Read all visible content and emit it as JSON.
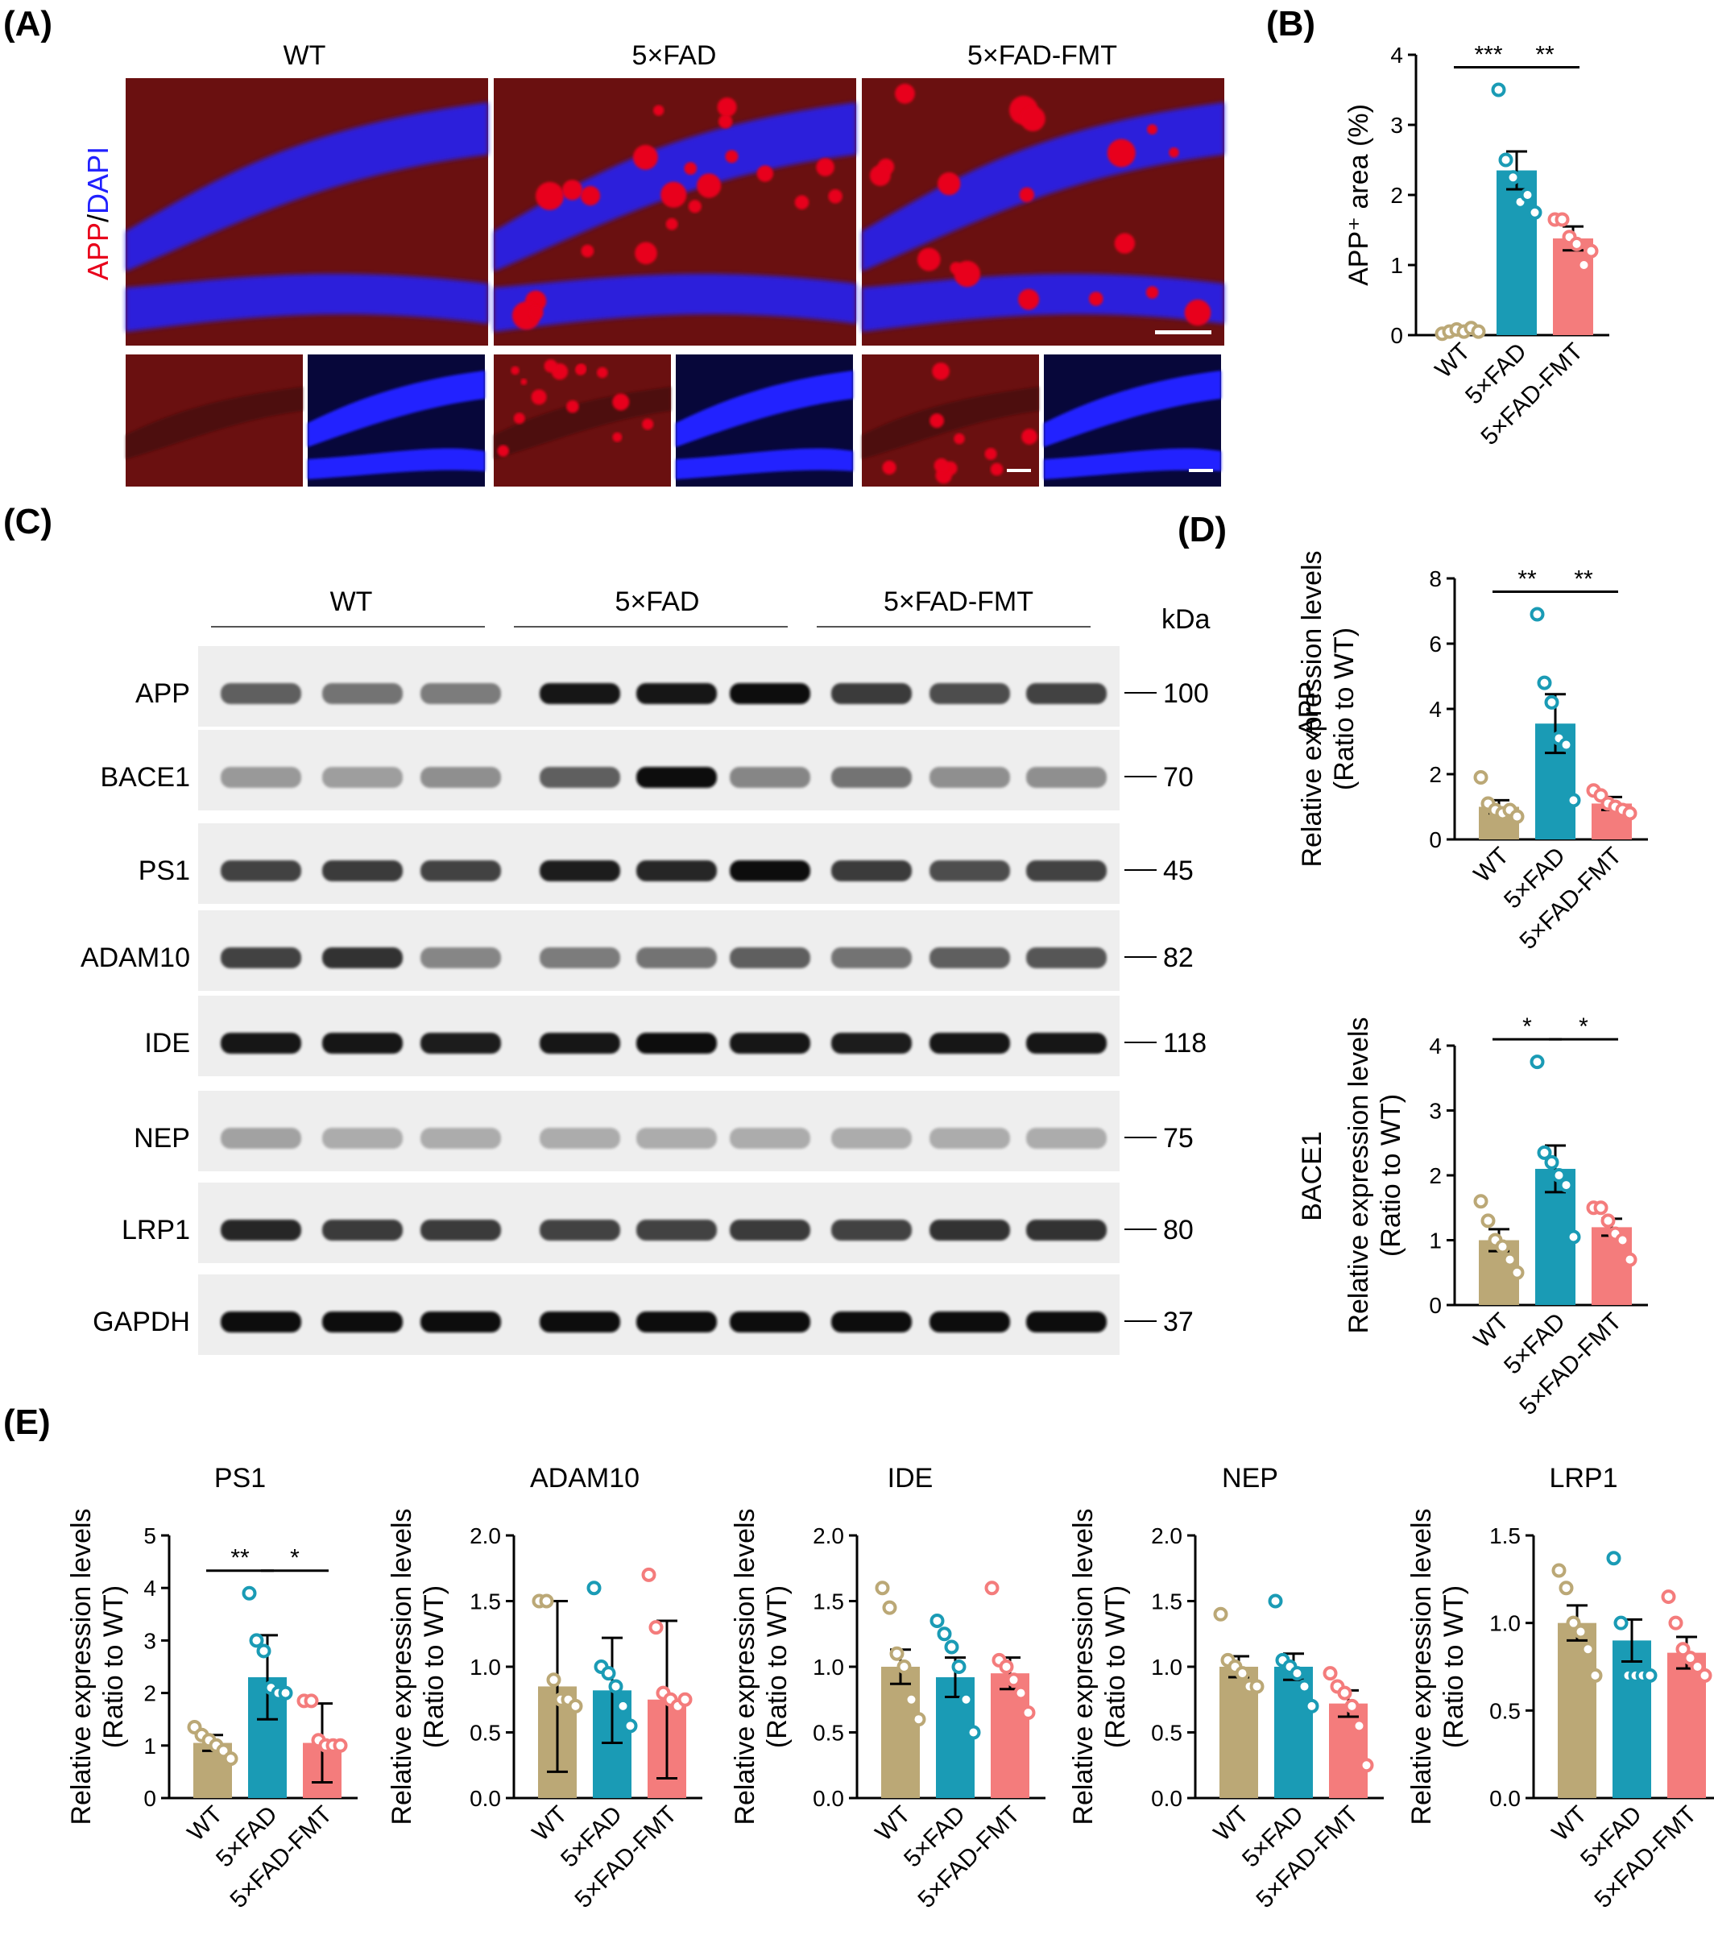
{
  "panels": {
    "A": {
      "label": "(A)",
      "groups": [
        "WT",
        "5×FAD",
        "5×FAD-FMT"
      ],
      "stain_label_1": "APP",
      "stain_label_sep": "/",
      "stain_label_2": "DAPI",
      "colors": {
        "app": "#e8001a",
        "dapi": "#2020ff",
        "bg_red": "#6a1010",
        "bg_blue": "#101070"
      }
    },
    "B": {
      "label": "(B)"
    },
    "C": {
      "label": "(C)",
      "groups": [
        "WT",
        "5×FAD",
        "5×FAD-FMT"
      ],
      "kda_label": "kDa",
      "blots": [
        {
          "name": "APP",
          "kda": "100",
          "intensity": [
            0.55,
            0.45,
            0.4,
            0.95,
            0.95,
            1.0,
            0.75,
            0.65,
            0.7
          ]
        },
        {
          "name": "BACE1",
          "kda": "70",
          "intensity": [
            0.25,
            0.22,
            0.3,
            0.55,
            1.0,
            0.35,
            0.45,
            0.3,
            0.3
          ]
        },
        {
          "name": "PS1",
          "kda": "45",
          "intensity": [
            0.7,
            0.75,
            0.7,
            0.9,
            0.85,
            1.0,
            0.75,
            0.65,
            0.7
          ]
        },
        {
          "name": "ADAM10",
          "kda": "82",
          "intensity": [
            0.7,
            0.8,
            0.35,
            0.4,
            0.45,
            0.55,
            0.45,
            0.55,
            0.6
          ]
        },
        {
          "name": "IDE",
          "kda": "118",
          "intensity": [
            0.95,
            0.95,
            0.9,
            0.95,
            1.0,
            0.95,
            0.9,
            0.95,
            0.95
          ]
        },
        {
          "name": "NEP",
          "kda": "75",
          "intensity": [
            0.2,
            0.15,
            0.15,
            0.15,
            0.15,
            0.15,
            0.15,
            0.15,
            0.15
          ]
        },
        {
          "name": "LRP1",
          "kda": "80",
          "intensity": [
            0.85,
            0.75,
            0.75,
            0.7,
            0.7,
            0.75,
            0.7,
            0.8,
            0.8
          ]
        },
        {
          "name": "GAPDH",
          "kda": "37",
          "intensity": [
            1.0,
            1.0,
            1.0,
            1.0,
            1.0,
            1.0,
            1.0,
            1.0,
            1.0
          ]
        }
      ]
    },
    "D": {
      "label": "(D)"
    },
    "E": {
      "label": "(E)"
    }
  },
  "colors": {
    "WT": "#bba876",
    "5×FAD": "#1a9bb5",
    "5×FAD-FMT": "#f47c7c"
  },
  "chart_data": [
    {
      "id": "B",
      "type": "bar",
      "categories": [
        "WT",
        "5×FAD",
        "5×FAD-FMT"
      ],
      "values": [
        0.05,
        2.35,
        1.38
      ],
      "errors": [
        0.03,
        0.27,
        0.17
      ],
      "points": [
        [
          0.02,
          0.05,
          0.08,
          0.05,
          0.1,
          0.05
        ],
        [
          3.5,
          2.5,
          2.25,
          1.9,
          2.0,
          1.75
        ],
        [
          1.65,
          1.65,
          1.4,
          1.3,
          1.0,
          1.2
        ]
      ],
      "ylabel": "APP⁺ area (%)",
      "ylim": [
        0,
        4
      ],
      "yticks": [
        "0",
        "1",
        "2",
        "3",
        "4"
      ],
      "sig": [
        {
          "from": 0,
          "to": 1,
          "text": "***"
        },
        {
          "from": 1,
          "to": 2,
          "text": "**"
        }
      ]
    },
    {
      "id": "D-APP",
      "type": "bar",
      "categories": [
        "WT",
        "5×FAD",
        "5×FAD-FMT"
      ],
      "values": [
        1.0,
        3.55,
        1.1
      ],
      "errors": [
        0.2,
        0.9,
        0.2
      ],
      "points": [
        [
          1.9,
          1.1,
          0.9,
          0.8,
          0.9,
          0.7
        ],
        [
          6.9,
          4.8,
          4.2,
          3.1,
          2.9,
          1.2
        ],
        [
          1.5,
          1.35,
          1.1,
          1.0,
          0.9,
          0.8
        ]
      ],
      "title": "APP",
      "ylabel": "Relative expression levels",
      "ylabel2": "(Ratio to WT)",
      "ylim": [
        0,
        8
      ],
      "yticks": [
        "0",
        "2",
        "4",
        "6",
        "8"
      ],
      "sig": [
        {
          "from": 0,
          "to": 1,
          "text": "**"
        },
        {
          "from": 1,
          "to": 2,
          "text": "**"
        }
      ]
    },
    {
      "id": "D-BACE1",
      "type": "bar",
      "categories": [
        "WT",
        "5×FAD",
        "5×FAD-FMT"
      ],
      "values": [
        1.0,
        2.1,
        1.2
      ],
      "errors": [
        0.17,
        0.36,
        0.13
      ],
      "points": [
        [
          1.6,
          1.3,
          1.0,
          0.9,
          0.7,
          0.5
        ],
        [
          3.75,
          2.35,
          2.2,
          2.0,
          1.85,
          1.05
        ],
        [
          1.5,
          1.5,
          1.3,
          1.1,
          1.0,
          0.7
        ]
      ],
      "title": "BACE1",
      "ylabel": "Relative expression levels",
      "ylabel2": "(Ratio to WT)",
      "ylim": [
        0,
        4
      ],
      "yticks": [
        "0",
        "1",
        "2",
        "3",
        "4"
      ],
      "sig": [
        {
          "from": 0,
          "to": 1,
          "text": "*"
        },
        {
          "from": 1,
          "to": 2,
          "text": "*"
        }
      ]
    },
    {
      "id": "E-PS1",
      "type": "bar",
      "title": "PS1",
      "categories": [
        "WT",
        "5×FAD",
        "5×FAD-FMT"
      ],
      "values": [
        1.05,
        2.3,
        1.05
      ],
      "errors": [
        0.15,
        0.8,
        0.75
      ],
      "points": [
        [
          1.35,
          1.2,
          1.1,
          1.0,
          0.9,
          0.75
        ],
        [
          3.9,
          3.0,
          2.8,
          2.1,
          2.0,
          2.0
        ],
        [
          1.85,
          1.85,
          1.1,
          1.0,
          1.0,
          1.0
        ]
      ],
      "ylabel": "Relative expression levels",
      "ylabel2": "(Ratio to WT)",
      "ylim": [
        0,
        5
      ],
      "yticks": [
        "0",
        "1",
        "2",
        "3",
        "4",
        "5"
      ],
      "sig": [
        {
          "from": 0,
          "to": 1,
          "text": "**"
        },
        {
          "from": 1,
          "to": 2,
          "text": "*"
        }
      ]
    },
    {
      "id": "E-ADAM10",
      "type": "bar",
      "title": "ADAM10",
      "categories": [
        "WT",
        "5×FAD",
        "5×FAD-FMT"
      ],
      "values": [
        0.85,
        0.82,
        0.75
      ],
      "errors": [
        0.65,
        0.4,
        0.6
      ],
      "points": [
        [
          1.5,
          1.5,
          0.9,
          0.75,
          0.75,
          0.7
        ],
        [
          1.6,
          1.0,
          0.95,
          0.85,
          0.7,
          0.55
        ],
        [
          1.7,
          1.3,
          0.8,
          0.75,
          0.7,
          0.75
        ]
      ],
      "ylabel": "Relative expression levels",
      "ylabel2": "(Ratio to WT)",
      "ylim": [
        0,
        2
      ],
      "yticks": [
        "0.0",
        "0.5",
        "1.0",
        "1.5",
        "2.0"
      ],
      "sig": []
    },
    {
      "id": "E-IDE",
      "type": "bar",
      "title": "IDE",
      "categories": [
        "WT",
        "5×FAD",
        "5×FAD-FMT"
      ],
      "values": [
        1.0,
        0.92,
        0.95
      ],
      "errors": [
        0.13,
        0.15,
        0.12
      ],
      "points": [
        [
          1.6,
          1.45,
          1.1,
          1.0,
          0.75,
          0.6
        ],
        [
          1.35,
          1.25,
          1.15,
          1.0,
          0.75,
          0.5
        ],
        [
          1.6,
          1.05,
          1.0,
          0.9,
          0.8,
          0.65
        ]
      ],
      "ylabel": "Relative expression levels",
      "ylabel2": "(Ratio to WT)",
      "ylim": [
        0,
        2
      ],
      "yticks": [
        "0.0",
        "0.5",
        "1.0",
        "1.5",
        "2.0"
      ],
      "sig": []
    },
    {
      "id": "E-NEP",
      "type": "bar",
      "title": "NEP",
      "categories": [
        "WT",
        "5×FAD",
        "5×FAD-FMT"
      ],
      "values": [
        1.0,
        1.0,
        0.72
      ],
      "errors": [
        0.08,
        0.1,
        0.1
      ],
      "points": [
        [
          1.4,
          1.05,
          1.0,
          0.95,
          0.85,
          0.85
        ],
        [
          1.5,
          1.05,
          1.0,
          0.95,
          0.85,
          0.7
        ],
        [
          0.95,
          0.85,
          0.8,
          0.7,
          0.55,
          0.25
        ]
      ],
      "ylabel": "Relative expression levels",
      "ylabel2": "(Ratio to WT)",
      "ylim": [
        0,
        2
      ],
      "yticks": [
        "0.0",
        "0.5",
        "1.0",
        "1.5",
        "2.0"
      ],
      "sig": []
    },
    {
      "id": "E-LRP1",
      "type": "bar",
      "title": "LRP1",
      "categories": [
        "WT",
        "5×FAD",
        "5×FAD-FMT"
      ],
      "values": [
        1.0,
        0.9,
        0.83
      ],
      "errors": [
        0.1,
        0.12,
        0.09
      ],
      "points": [
        [
          1.3,
          1.2,
          1.0,
          0.95,
          0.85,
          0.7
        ],
        [
          1.37,
          1.0,
          0.7,
          0.7,
          0.7,
          0.7
        ],
        [
          1.15,
          1.0,
          0.85,
          0.8,
          0.75,
          0.7
        ]
      ],
      "ylabel": "Relative expression levels",
      "ylabel2": "(Ratio to WT)",
      "ylim": [
        0,
        1.5
      ],
      "yticks": [
        "0.0",
        "0.5",
        "1.0",
        "1.5"
      ],
      "sig": []
    }
  ]
}
